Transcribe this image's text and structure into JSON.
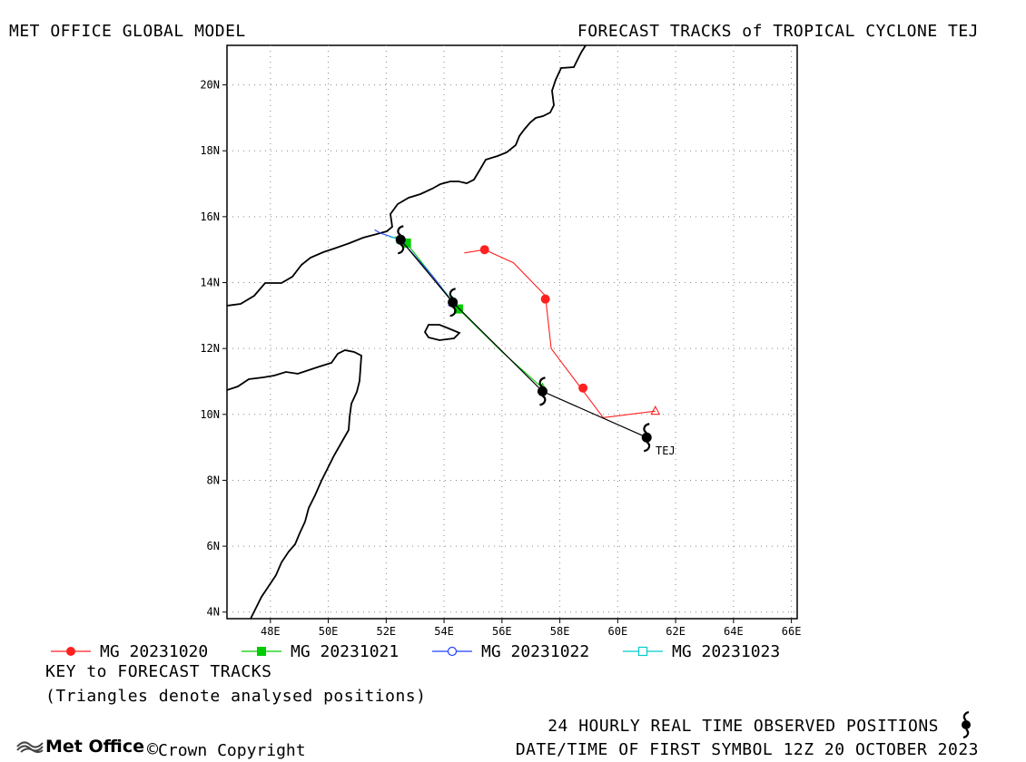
{
  "header": {
    "left_title": "MET OFFICE GLOBAL MODEL",
    "right_title": "FORECAST TRACKS of TROPICAL CYCLONE TEJ"
  },
  "axes": {
    "lat_labels": [
      "4N",
      "6N",
      "8N",
      "10N",
      "12N",
      "14N",
      "16N",
      "18N",
      "20N"
    ],
    "lon_labels": [
      "48E",
      "50E",
      "52E",
      "54E",
      "56E",
      "58E",
      "60E",
      "62E",
      "64E",
      "66E"
    ],
    "lat_range": [
      3.8,
      21.2
    ],
    "lon_range": [
      46.5,
      66.2
    ],
    "grid": true
  },
  "cyclone_label": "TEJ",
  "observed_positions": [
    {
      "lon": 61.0,
      "lat": 9.3
    },
    {
      "lon": 57.4,
      "lat": 10.7
    },
    {
      "lon": 54.3,
      "lat": 13.4
    },
    {
      "lon": 52.5,
      "lat": 15.3
    }
  ],
  "tracks": [
    {
      "name": "MG 20231020",
      "color": "#ff2020",
      "marker": "filled-circle",
      "analysed": {
        "lon": 61.3,
        "lat": 10.1
      },
      "path": [
        [
          61.3,
          10.1
        ],
        [
          59.5,
          9.9
        ],
        [
          57.7,
          12.0
        ],
        [
          57.5,
          13.6
        ],
        [
          56.4,
          14.6
        ],
        [
          55.4,
          15.0
        ],
        [
          54.7,
          14.9
        ]
      ],
      "markers": [
        [
          58.8,
          10.8
        ],
        [
          57.5,
          13.5
        ],
        [
          55.4,
          15.0
        ]
      ]
    },
    {
      "name": "MG 20231021",
      "color": "#00cc00",
      "marker": "filled-square",
      "analysed": {
        "lon": 57.4,
        "lat": 10.8
      },
      "path": [
        [
          57.4,
          10.8
        ],
        [
          56.0,
          11.9
        ],
        [
          54.5,
          13.2
        ],
        [
          53.6,
          14.2
        ],
        [
          52.7,
          15.2
        ],
        [
          52.3,
          15.4
        ]
      ],
      "markers": [
        [
          54.5,
          13.2
        ],
        [
          52.7,
          15.2
        ]
      ]
    },
    {
      "name": "MG 20231022",
      "color": "#2040ff",
      "marker": "open-circle",
      "analysed": {
        "lon": 54.3,
        "lat": 13.4
      },
      "path": [
        [
          54.3,
          13.4
        ],
        [
          53.6,
          14.2
        ],
        [
          52.5,
          15.3
        ],
        [
          51.8,
          15.5
        ],
        [
          51.6,
          15.6
        ]
      ],
      "markers": [
        [
          52.5,
          15.3
        ]
      ]
    },
    {
      "name": "MG 20231023",
      "color": "#00cccc",
      "marker": "open-square",
      "analysed": {
        "lon": 52.5,
        "lat": 15.3
      },
      "path": [
        [
          52.5,
          15.3
        ],
        [
          52.1,
          15.4
        ]
      ],
      "markers": []
    }
  ],
  "key": {
    "title": "KEY to FORECAST TRACKS",
    "note": "(Triangles denote analysed positions)"
  },
  "footer": {
    "observed_note": "24 HOURLY REAL TIME OBSERVED POSITIONS",
    "date_line": "DATE/TIME OF FIRST SYMBOL 12Z 20 OCTOBER 2023",
    "brand": "Met Office",
    "copyright": "Crown Copyright"
  }
}
